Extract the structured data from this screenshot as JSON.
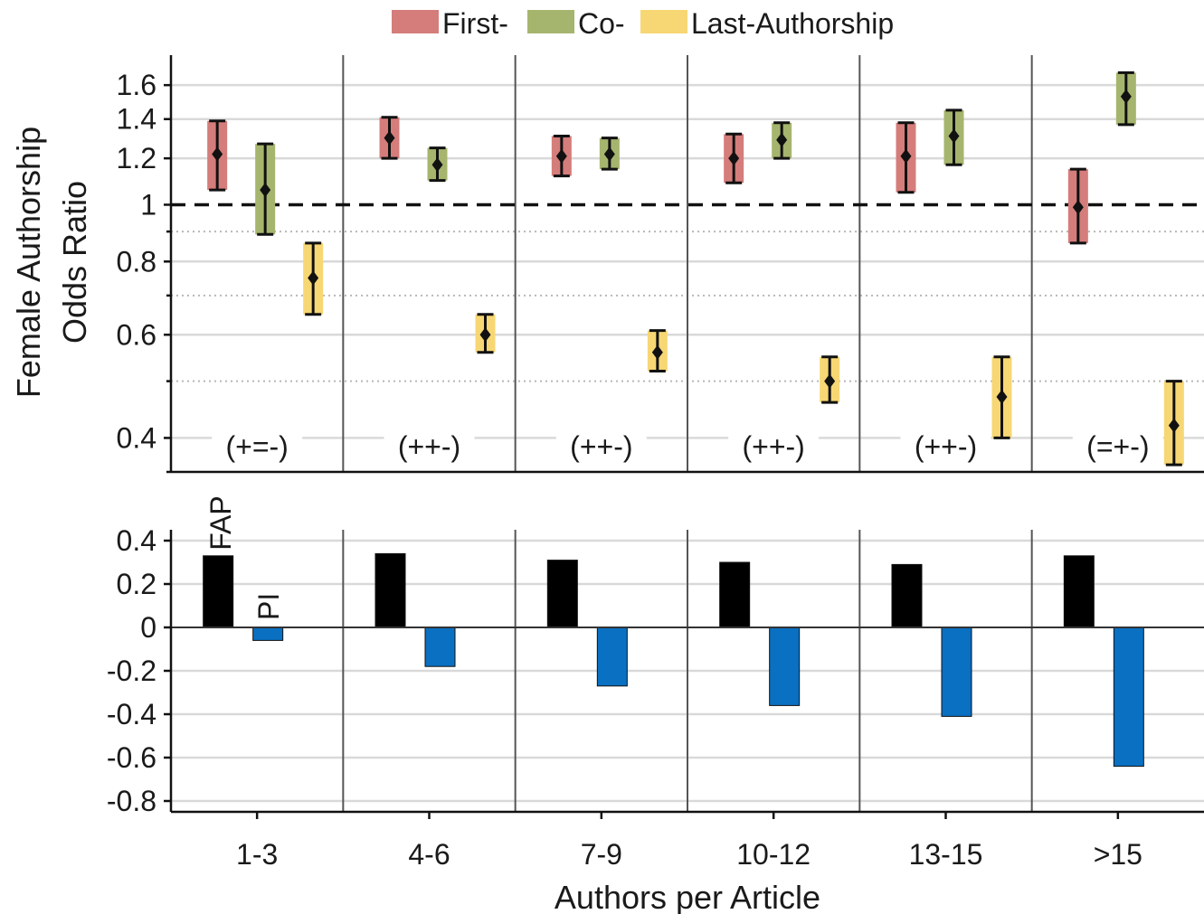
{
  "chart_data": [
    {
      "type": "range",
      "ylabel": [
        "Female Authorship",
        "Odds Ratio"
      ],
      "y_scale": "log",
      "ylim": [
        0.35,
        1.8
      ],
      "yticks": [
        0.4,
        0.6,
        0.8,
        1,
        1.2,
        1.4,
        1.6
      ],
      "ytick_labels": [
        "0.4",
        "0.6",
        "0.8",
        "1",
        "1.2",
        "1.4",
        "1.6"
      ],
      "dotted_gridlines": [
        0.35,
        0.5,
        0.7,
        0.9
      ],
      "reference_line": 1,
      "categories": [
        "1-3",
        "4-6",
        "7-9",
        "10-12",
        "13-15",
        ">15"
      ],
      "legend": {
        "placement": "top-center",
        "entries": [
          {
            "label": "First-",
            "color": "#d47d7b"
          },
          {
            "label": "Co-",
            "color": "#a6b56d"
          },
          {
            "label": "Last-Authorship",
            "color": "#f7d774"
          }
        ]
      },
      "annotations": [
        "(+=-)",
        "(++-)",
        "(++-)",
        "(++-)",
        "(++-)",
        "(=+-)"
      ],
      "series": [
        {
          "name": "First-",
          "color": "#d47d7b",
          "points": [
            {
              "estimate": 1.22,
              "low": 1.06,
              "high": 1.39
            },
            {
              "estimate": 1.3,
              "low": 1.2,
              "high": 1.41
            },
            {
              "estimate": 1.21,
              "low": 1.12,
              "high": 1.31
            },
            {
              "estimate": 1.2,
              "low": 1.09,
              "high": 1.32
            },
            {
              "estimate": 1.21,
              "low": 1.05,
              "high": 1.38
            },
            {
              "estimate": 0.99,
              "low": 0.86,
              "high": 1.15
            }
          ]
        },
        {
          "name": "Co-",
          "color": "#a6b56d",
          "points": [
            {
              "estimate": 1.06,
              "low": 0.89,
              "high": 1.27
            },
            {
              "estimate": 1.17,
              "low": 1.1,
              "high": 1.25
            },
            {
              "estimate": 1.22,
              "low": 1.15,
              "high": 1.3
            },
            {
              "estimate": 1.29,
              "low": 1.2,
              "high": 1.38
            },
            {
              "estimate": 1.31,
              "low": 1.17,
              "high": 1.45
            },
            {
              "estimate": 1.53,
              "low": 1.37,
              "high": 1.68
            }
          ]
        },
        {
          "name": "Last-Authorship",
          "color": "#f7d774",
          "points": [
            {
              "estimate": 0.75,
              "low": 0.65,
              "high": 0.86
            },
            {
              "estimate": 0.6,
              "low": 0.56,
              "high": 0.65
            },
            {
              "estimate": 0.56,
              "low": 0.52,
              "high": 0.61
            },
            {
              "estimate": 0.5,
              "low": 0.46,
              "high": 0.55
            },
            {
              "estimate": 0.47,
              "low": 0.4,
              "high": 0.55
            },
            {
              "estimate": 0.42,
              "low": 0.36,
              "high": 0.5
            }
          ]
        }
      ]
    },
    {
      "type": "bar",
      "xlabel": "Authors per Article",
      "ylim": [
        -0.85,
        0.45
      ],
      "yticks": [
        -0.8,
        -0.6,
        -0.4,
        -0.2,
        0,
        0.2,
        0.4
      ],
      "ytick_labels": [
        "-0.8",
        "-0.6",
        "-0.4",
        "-0.2",
        "0",
        "0.2",
        "0.4"
      ],
      "categories": [
        "1-3",
        "4-6",
        "7-9",
        "10-12",
        "13-15",
        ">15"
      ],
      "series": [
        {
          "name": "FAP",
          "color": "#000000",
          "values": [
            0.33,
            0.34,
            0.31,
            0.3,
            0.29,
            0.33
          ]
        },
        {
          "name": "PI",
          "color": "#0a70c2",
          "values": [
            -0.06,
            -0.18,
            -0.27,
            -0.36,
            -0.41,
            -0.64
          ]
        }
      ]
    }
  ]
}
